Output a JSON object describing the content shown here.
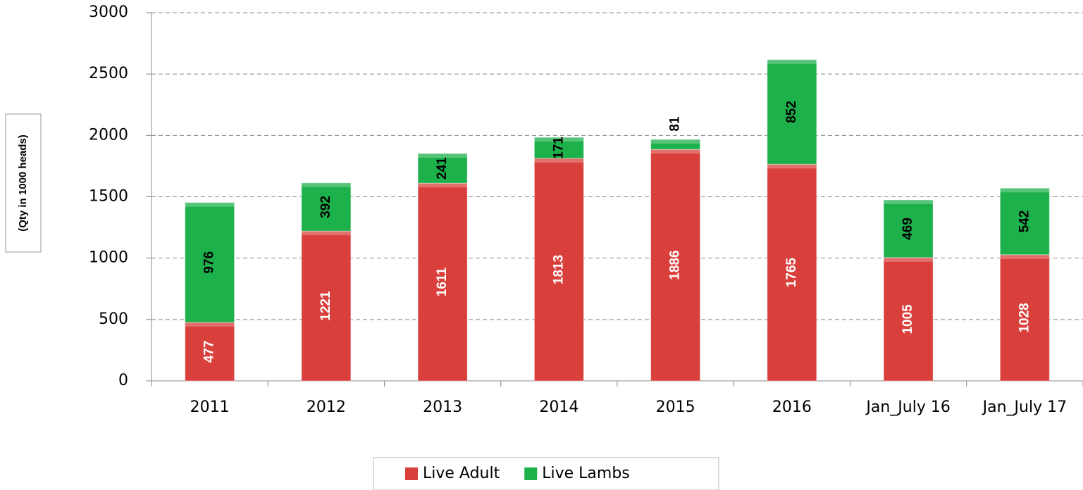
{
  "chart_data": {
    "type": "stacked_bar",
    "y_axis_label": "(Qty in 1000 heads)",
    "categories": [
      "2011",
      "2012",
      "2013",
      "2014",
      "2015",
      "2016",
      "Jan_July 16",
      "Jan_July 17"
    ],
    "series": [
      {
        "name": "Live Adult",
        "color": "#d9403c",
        "values": [
          477,
          1221,
          1611,
          1813,
          1886,
          1765,
          1005,
          1028
        ]
      },
      {
        "name": "Live Lambs",
        "color": "#1db14b",
        "values": [
          976,
          392,
          241,
          171,
          81,
          852,
          469,
          542
        ]
      }
    ],
    "ylim": [
      0,
      3000
    ],
    "yticks": [
      0,
      500,
      1000,
      1500,
      2000,
      2500,
      3000
    ],
    "grid": true,
    "legend": "bottom"
  }
}
